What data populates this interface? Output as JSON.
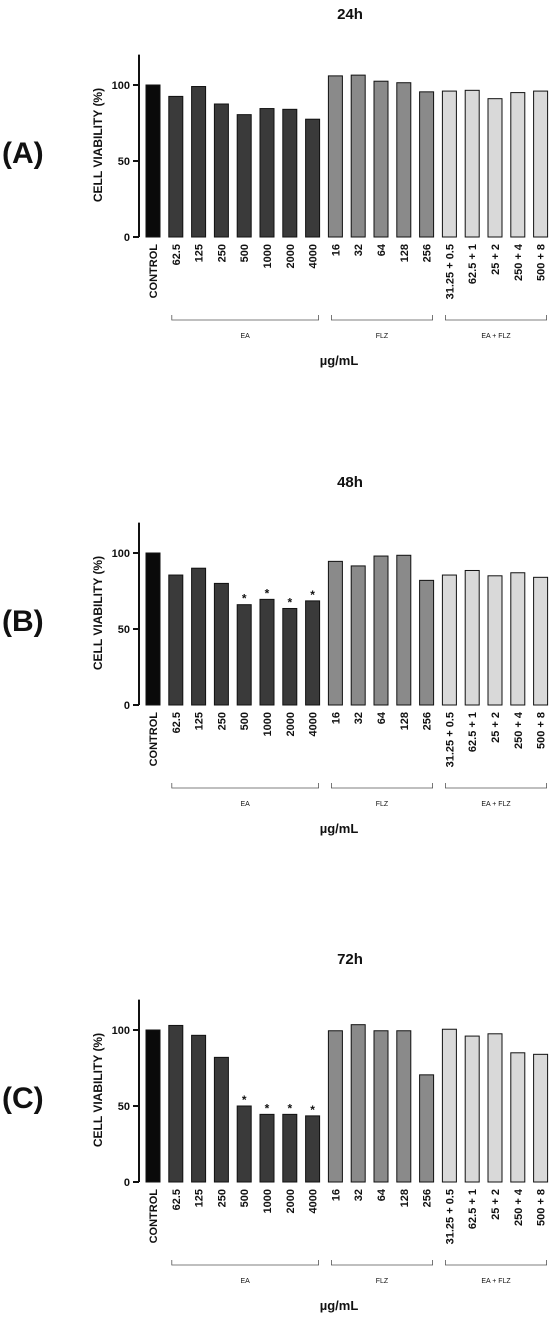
{
  "chart_data": [
    {
      "panel_label": "(A)",
      "title": "24h",
      "type": "bar",
      "ylabel": "CELL VIABILITY (%)",
      "xlabel": "µg/mL",
      "ylim": [
        0,
        120
      ],
      "yticks": [
        0,
        50,
        100
      ],
      "categories": [
        "CONTROL",
        "62.5",
        "125",
        "250",
        "500",
        "1000",
        "2000",
        "4000",
        "16",
        "32",
        "64",
        "128",
        "256",
        "31.25 + 0.5",
        "62.5 + 1",
        "25 + 2",
        "250 + 4",
        "500 + 8"
      ],
      "values": [
        100,
        92.5,
        99,
        87.5,
        80.5,
        84.5,
        84,
        77.5,
        106,
        106.5,
        102.5,
        101.5,
        95.5,
        96,
        96.5,
        91,
        95,
        96
      ],
      "significant": [
        false,
        false,
        false,
        false,
        false,
        false,
        false,
        false,
        false,
        false,
        false,
        false,
        false,
        false,
        false,
        false,
        false,
        false
      ],
      "groups": [
        {
          "label": "EA",
          "start": 1,
          "end": 7
        },
        {
          "label": "FLZ",
          "start": 8,
          "end": 12
        },
        {
          "label": "EA + FLZ",
          "start": 13,
          "end": 17
        }
      ]
    },
    {
      "panel_label": "(B)",
      "title": "48h",
      "type": "bar",
      "ylabel": "CELL VIABILITY (%)",
      "xlabel": "µg/mL",
      "ylim": [
        0,
        120
      ],
      "yticks": [
        0,
        50,
        100
      ],
      "categories": [
        "CONTROL",
        "62.5",
        "125",
        "250",
        "500",
        "1000",
        "2000",
        "4000",
        "16",
        "32",
        "64",
        "128",
        "256",
        "31.25 + 0.5",
        "62.5 + 1",
        "25 + 2",
        "250 + 4",
        "500 + 8"
      ],
      "values": [
        100,
        85.5,
        90,
        80,
        66,
        69.5,
        63.5,
        68.5,
        94.5,
        91.5,
        98,
        98.5,
        82,
        85.5,
        88.5,
        85,
        87,
        84
      ],
      "significant": [
        false,
        false,
        false,
        false,
        true,
        true,
        true,
        true,
        false,
        false,
        false,
        false,
        false,
        false,
        false,
        false,
        false,
        false
      ],
      "groups": [
        {
          "label": "EA",
          "start": 1,
          "end": 7
        },
        {
          "label": "FLZ",
          "start": 8,
          "end": 12
        },
        {
          "label": "EA + FLZ",
          "start": 13,
          "end": 17
        }
      ]
    },
    {
      "panel_label": "(C)",
      "title": "72h",
      "type": "bar",
      "ylabel": "CELL VIABILITY (%)",
      "xlabel": "µg/mL",
      "ylim": [
        0,
        120
      ],
      "yticks": [
        0,
        50,
        100
      ],
      "categories": [
        "CONTROL",
        "62.5",
        "125",
        "250",
        "500",
        "1000",
        "2000",
        "4000",
        "16",
        "32",
        "64",
        "128",
        "256",
        "31.25 + 0.5",
        "62.5 + 1",
        "25 + 2",
        "250 + 4",
        "500 + 8"
      ],
      "values": [
        100,
        103,
        96.5,
        82,
        50,
        44.5,
        44.5,
        43.5,
        99.5,
        103.5,
        99.5,
        99.5,
        70.5,
        100.5,
        96,
        97.5,
        85,
        84
      ],
      "significant": [
        false,
        false,
        false,
        false,
        true,
        true,
        true,
        true,
        false,
        false,
        false,
        false,
        false,
        false,
        false,
        false,
        false,
        false
      ],
      "groups": [
        {
          "label": "EA",
          "start": 1,
          "end": 7
        },
        {
          "label": "FLZ",
          "start": 8,
          "end": 12
        },
        {
          "label": "EA + FLZ",
          "start": 13,
          "end": 17
        }
      ]
    }
  ],
  "colors": {
    "control": "#0a0a0a",
    "ea": "#3a3a3a",
    "flz": "#8a8a8a",
    "ea_flz": "#d9d9d9",
    "stroke": "#111111"
  },
  "significance_symbol": "*"
}
